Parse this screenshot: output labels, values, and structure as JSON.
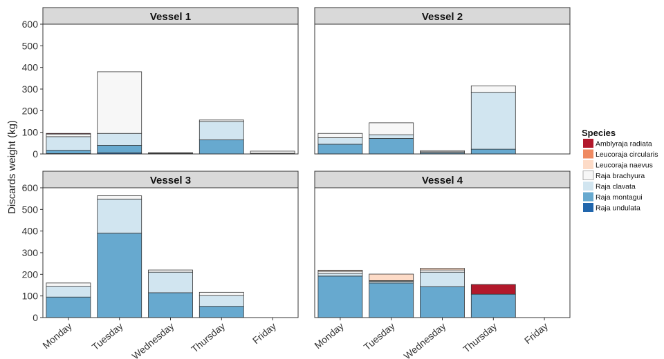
{
  "chart_data": {
    "type": "bar",
    "stacked": true,
    "facets": [
      "Vessel 1",
      "Vessel 2",
      "Vessel 3",
      "Vessel 4"
    ],
    "categories": [
      "Monday",
      "Tuesday",
      "Wednesday",
      "Thursday",
      "Friday"
    ],
    "ylabel": "Discards weight (kg)",
    "xlabel": "",
    "ylim": [
      0,
      600
    ],
    "yticks": [
      0,
      100,
      200,
      300,
      400,
      500,
      600
    ],
    "grid": false,
    "legend": {
      "title": "Species",
      "position": "right",
      "entries": [
        "Amblyraja radiata",
        "Leucoraja circularis",
        "Leucoraja naevus",
        "Raja brachyura",
        "Raja clavata",
        "Raja montagui",
        "Raja undulata"
      ]
    },
    "colors": {
      "Amblyraja radiata": "#b2182b",
      "Leucoraja circularis": "#ef8a62",
      "Leucoraja naevus": "#fddbc7",
      "Raja brachyura": "#f7f7f7",
      "Raja clavata": "#d1e5f0",
      "Raja montagui": "#67a9cf",
      "Raja undulata": "#2166ac"
    },
    "panels": [
      {
        "title": "Vessel 1",
        "series": [
          {
            "name": "Raja undulata",
            "values": [
              2,
              5,
              0,
              0,
              0
            ]
          },
          {
            "name": "Raja montagui",
            "values": [
              15,
              35,
              2,
              65,
              0
            ]
          },
          {
            "name": "Raja clavata",
            "values": [
              63,
              55,
              1,
              85,
              3
            ]
          },
          {
            "name": "Raja brachyura",
            "values": [
              12,
              285,
              3,
              7,
              10
            ]
          },
          {
            "name": "Leucoraja naevus",
            "values": [
              0,
              0,
              0,
              0,
              0
            ]
          },
          {
            "name": "Leucoraja circularis",
            "values": [
              0,
              0,
              0,
              0,
              0
            ]
          },
          {
            "name": "Amblyraja radiata",
            "values": [
              3,
              0,
              0,
              0,
              0
            ]
          }
        ]
      },
      {
        "title": "Vessel 2",
        "series": [
          {
            "name": "Raja undulata",
            "values": [
              0,
              0,
              0,
              0,
              0
            ]
          },
          {
            "name": "Raja montagui",
            "values": [
              45,
              72,
              5,
              22,
              0
            ]
          },
          {
            "name": "Raja clavata",
            "values": [
              30,
              17,
              5,
              263,
              0
            ]
          },
          {
            "name": "Raja brachyura",
            "values": [
              20,
              55,
              5,
              30,
              0
            ]
          },
          {
            "name": "Leucoraja naevus",
            "values": [
              0,
              0,
              0,
              0,
              0
            ]
          },
          {
            "name": "Leucoraja circularis",
            "values": [
              0,
              0,
              0,
              0,
              0
            ]
          },
          {
            "name": "Amblyraja radiata",
            "values": [
              0,
              0,
              0,
              0,
              0
            ]
          }
        ]
      },
      {
        "title": "Vessel 3",
        "series": [
          {
            "name": "Raja undulata",
            "values": [
              0,
              0,
              0,
              0,
              0
            ]
          },
          {
            "name": "Raja montagui",
            "values": [
              95,
              390,
              115,
              52,
              0
            ]
          },
          {
            "name": "Raja clavata",
            "values": [
              50,
              158,
              95,
              50,
              0
            ]
          },
          {
            "name": "Raja brachyura",
            "values": [
              15,
              15,
              10,
              15,
              0
            ]
          },
          {
            "name": "Leucoraja naevus",
            "values": [
              0,
              0,
              0,
              0,
              0
            ]
          },
          {
            "name": "Leucoraja circularis",
            "values": [
              0,
              0,
              0,
              0,
              0
            ]
          },
          {
            "name": "Amblyraja radiata",
            "values": [
              0,
              0,
              0,
              0,
              0
            ]
          }
        ]
      },
      {
        "title": "Vessel 4",
        "series": [
          {
            "name": "Raja undulata",
            "values": [
              0,
              0,
              0,
              0,
              0
            ]
          },
          {
            "name": "Raja montagui",
            "values": [
              192,
              160,
              143,
              108,
              0
            ]
          },
          {
            "name": "Raja clavata",
            "values": [
              12,
              8,
              67,
              0,
              0
            ]
          },
          {
            "name": "Raja brachyura",
            "values": [
              10,
              3,
              10,
              0,
              0
            ]
          },
          {
            "name": "Leucoraja naevus",
            "values": [
              5,
              30,
              8,
              0,
              0
            ]
          },
          {
            "name": "Leucoraja circularis",
            "values": [
              0,
              0,
              0,
              0,
              0
            ]
          },
          {
            "name": "Amblyraja radiata",
            "values": [
              0,
              0,
              0,
              45,
              0
            ]
          }
        ]
      }
    ]
  }
}
